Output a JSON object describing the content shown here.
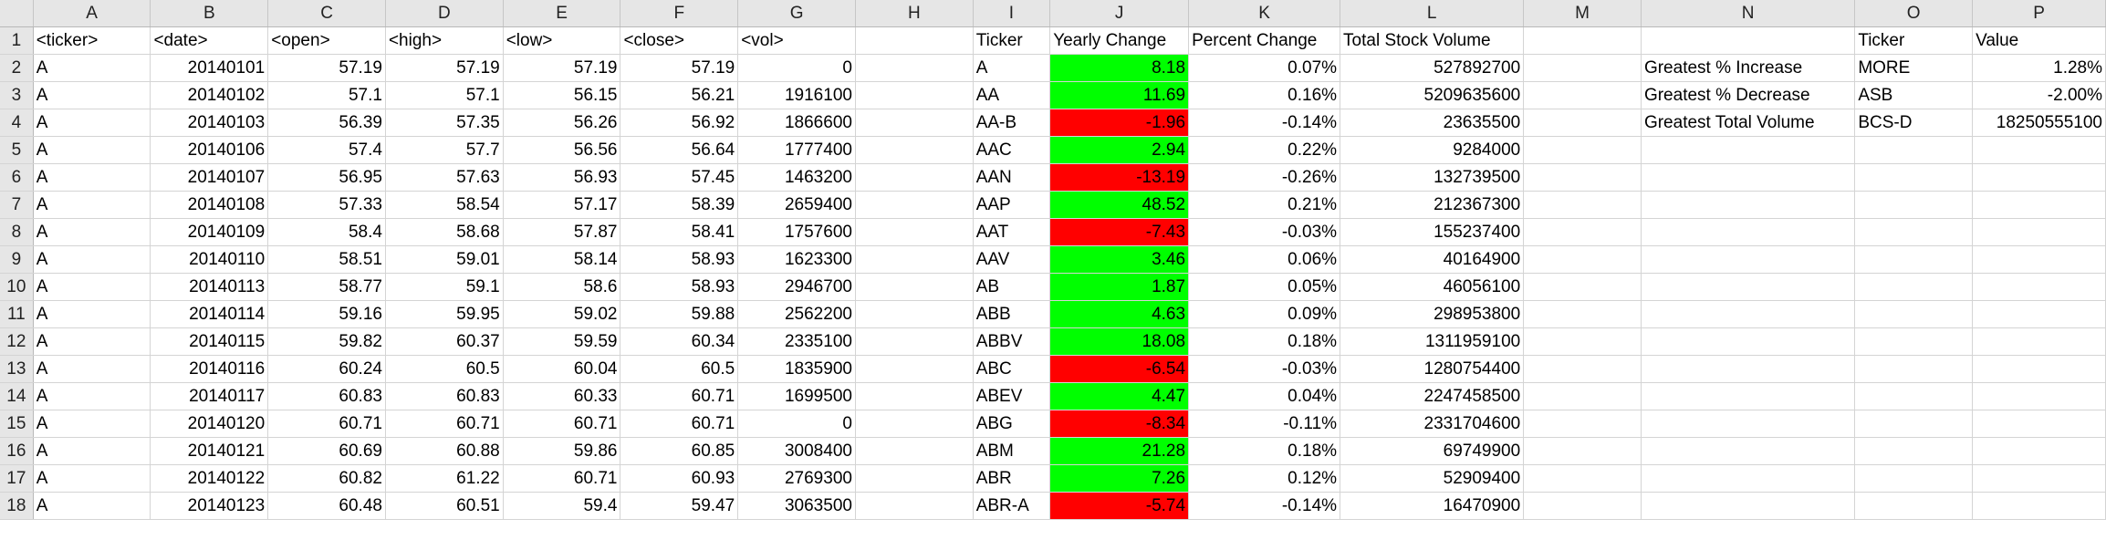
{
  "column_headers": [
    "A",
    "B",
    "C",
    "D",
    "E",
    "F",
    "G",
    "H",
    "I",
    "J",
    "K",
    "L",
    "M",
    "N",
    "O",
    "P"
  ],
  "rows": [
    {
      "n": "1",
      "a": "<ticker>",
      "b": "<date>",
      "c": "<open>",
      "d": "<high>",
      "e": "<low>",
      "f": "<close>",
      "g": "<vol>",
      "i": "Ticker",
      "j": "Yearly Change",
      "k": "Percent Change",
      "l": "Total Stock Volume",
      "n2": "",
      "o": "Ticker",
      "p": "Value",
      "j_status": "header"
    },
    {
      "n": "2",
      "a": "A",
      "b": "20140101",
      "c": "57.19",
      "d": "57.19",
      "e": "57.19",
      "f": "57.19",
      "g": "0",
      "i": "A",
      "j": "8.18",
      "k": "0.07%",
      "l": "527892700",
      "n2": "Greatest % Increase",
      "o": "MORE",
      "p": "1.28%",
      "j_status": "positive"
    },
    {
      "n": "3",
      "a": "A",
      "b": "20140102",
      "c": "57.1",
      "d": "57.1",
      "e": "56.15",
      "f": "56.21",
      "g": "1916100",
      "i": "AA",
      "j": "11.69",
      "k": "0.16%",
      "l": "5209635600",
      "n2": "Greatest % Decrease",
      "o": "ASB",
      "p": "-2.00%",
      "j_status": "positive"
    },
    {
      "n": "4",
      "a": "A",
      "b": "20140103",
      "c": "56.39",
      "d": "57.35",
      "e": "56.26",
      "f": "56.92",
      "g": "1866600",
      "i": "AA-B",
      "j": "-1.96",
      "k": "-0.14%",
      "l": "23635500",
      "n2": "Greatest Total Volume",
      "o": "BCS-D",
      "p": "18250555100",
      "j_status": "negative"
    },
    {
      "n": "5",
      "a": "A",
      "b": "20140106",
      "c": "57.4",
      "d": "57.7",
      "e": "56.56",
      "f": "56.64",
      "g": "1777400",
      "i": "AAC",
      "j": "2.94",
      "k": "0.22%",
      "l": "9284000",
      "n2": "",
      "o": "",
      "p": "",
      "j_status": "positive"
    },
    {
      "n": "6",
      "a": "A",
      "b": "20140107",
      "c": "56.95",
      "d": "57.63",
      "e": "56.93",
      "f": "57.45",
      "g": "1463200",
      "i": "AAN",
      "j": "-13.19",
      "k": "-0.26%",
      "l": "132739500",
      "n2": "",
      "o": "",
      "p": "",
      "j_status": "negative"
    },
    {
      "n": "7",
      "a": "A",
      "b": "20140108",
      "c": "57.33",
      "d": "58.54",
      "e": "57.17",
      "f": "58.39",
      "g": "2659400",
      "i": "AAP",
      "j": "48.52",
      "k": "0.21%",
      "l": "212367300",
      "n2": "",
      "o": "",
      "p": "",
      "j_status": "positive"
    },
    {
      "n": "8",
      "a": "A",
      "b": "20140109",
      "c": "58.4",
      "d": "58.68",
      "e": "57.87",
      "f": "58.41",
      "g": "1757600",
      "i": "AAT",
      "j": "-7.43",
      "k": "-0.03%",
      "l": "155237400",
      "n2": "",
      "o": "",
      "p": "",
      "j_status": "negative"
    },
    {
      "n": "9",
      "a": "A",
      "b": "20140110",
      "c": "58.51",
      "d": "59.01",
      "e": "58.14",
      "f": "58.93",
      "g": "1623300",
      "i": "AAV",
      "j": "3.46",
      "k": "0.06%",
      "l": "40164900",
      "n2": "",
      "o": "",
      "p": "",
      "j_status": "positive"
    },
    {
      "n": "10",
      "a": "A",
      "b": "20140113",
      "c": "58.77",
      "d": "59.1",
      "e": "58.6",
      "f": "58.93",
      "g": "2946700",
      "i": "AB",
      "j": "1.87",
      "k": "0.05%",
      "l": "46056100",
      "n2": "",
      "o": "",
      "p": "",
      "j_status": "positive"
    },
    {
      "n": "11",
      "a": "A",
      "b": "20140114",
      "c": "59.16",
      "d": "59.95",
      "e": "59.02",
      "f": "59.88",
      "g": "2562200",
      "i": "ABB",
      "j": "4.63",
      "k": "0.09%",
      "l": "298953800",
      "n2": "",
      "o": "",
      "p": "",
      "j_status": "positive"
    },
    {
      "n": "12",
      "a": "A",
      "b": "20140115",
      "c": "59.82",
      "d": "60.37",
      "e": "59.59",
      "f": "60.34",
      "g": "2335100",
      "i": "ABBV",
      "j": "18.08",
      "k": "0.18%",
      "l": "1311959100",
      "n2": "",
      "o": "",
      "p": "",
      "j_status": "positive"
    },
    {
      "n": "13",
      "a": "A",
      "b": "20140116",
      "c": "60.24",
      "d": "60.5",
      "e": "60.04",
      "f": "60.5",
      "g": "1835900",
      "i": "ABC",
      "j": "-6.54",
      "k": "-0.03%",
      "l": "1280754400",
      "n2": "",
      "o": "",
      "p": "",
      "j_status": "negative"
    },
    {
      "n": "14",
      "a": "A",
      "b": "20140117",
      "c": "60.83",
      "d": "60.83",
      "e": "60.33",
      "f": "60.71",
      "g": "1699500",
      "i": "ABEV",
      "j": "4.47",
      "k": "0.04%",
      "l": "2247458500",
      "n2": "",
      "o": "",
      "p": "",
      "j_status": "positive"
    },
    {
      "n": "15",
      "a": "A",
      "b": "20140120",
      "c": "60.71",
      "d": "60.71",
      "e": "60.71",
      "f": "60.71",
      "g": "0",
      "i": "ABG",
      "j": "-8.34",
      "k": "-0.11%",
      "l": "2331704600",
      "n2": "",
      "o": "",
      "p": "",
      "j_status": "negative"
    },
    {
      "n": "16",
      "a": "A",
      "b": "20140121",
      "c": "60.69",
      "d": "60.88",
      "e": "59.86",
      "f": "60.85",
      "g": "3008400",
      "i": "ABM",
      "j": "21.28",
      "k": "0.18%",
      "l": "69749900",
      "n2": "",
      "o": "",
      "p": "",
      "j_status": "positive"
    },
    {
      "n": "17",
      "a": "A",
      "b": "20140122",
      "c": "60.82",
      "d": "61.22",
      "e": "60.71",
      "f": "60.93",
      "g": "2769300",
      "i": "ABR",
      "j": "7.26",
      "k": "0.12%",
      "l": "52909400",
      "n2": "",
      "o": "",
      "p": "",
      "j_status": "positive"
    },
    {
      "n": "18",
      "a": "A",
      "b": "20140123",
      "c": "60.48",
      "d": "60.51",
      "e": "59.4",
      "f": "59.47",
      "g": "3063500",
      "i": "ABR-A",
      "j": "-5.74",
      "k": "-0.14%",
      "l": "16470900",
      "n2": "",
      "o": "",
      "p": "",
      "j_status": "negative"
    }
  ],
  "colors": {
    "positive": "#00ff00",
    "negative": "#ff0000",
    "header_bg": "#e6e6e6",
    "gridline": "#d4d4d4"
  }
}
